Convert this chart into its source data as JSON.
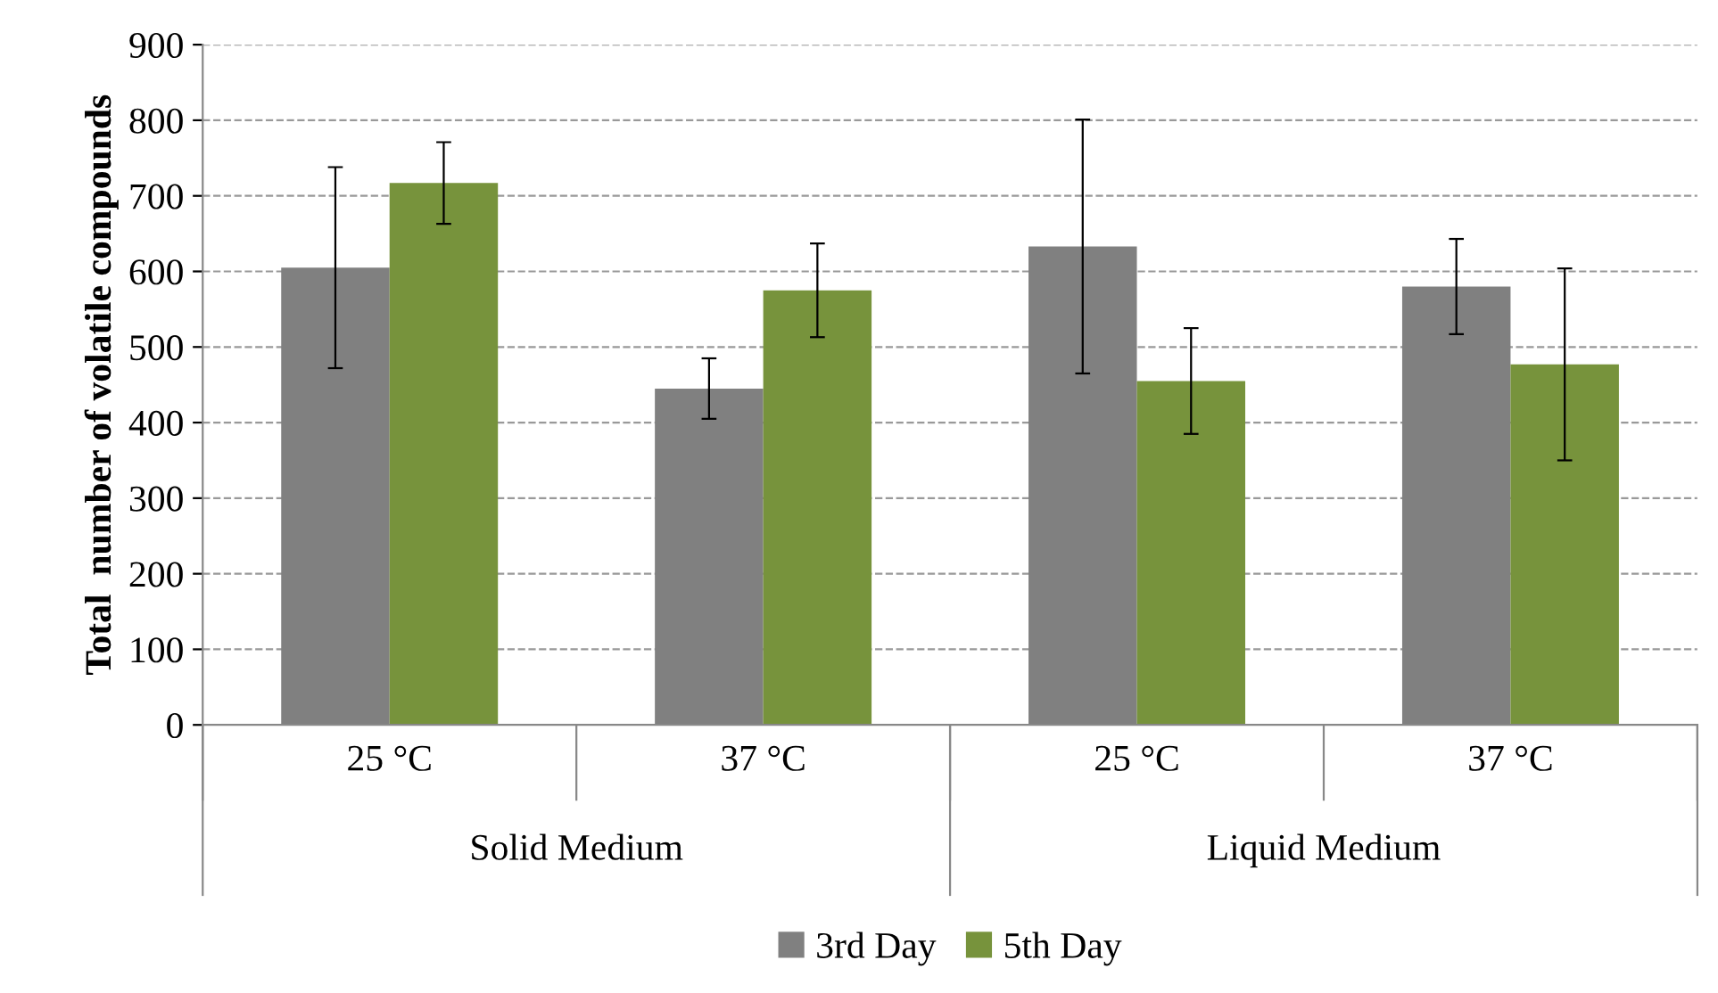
{
  "chart_data": {
    "type": "bar",
    "ylabel": "Total  number of volatile compounds",
    "categories": [
      "25 °C",
      "37 °C",
      "25 °C",
      "37 °C"
    ],
    "annotations": [
      "Solid Medium",
      "Liquid Medium"
    ],
    "series": [
      {
        "name": "3rd Day",
        "color": "#808080",
        "values": [
          605,
          445,
          633,
          580
        ],
        "errors": [
          133,
          40,
          168,
          63
        ]
      },
      {
        "name": "5th Day",
        "color": "#77933c",
        "values": [
          717,
          575,
          455,
          477
        ],
        "errors": [
          54,
          62,
          70,
          127
        ]
      }
    ],
    "ylim": [
      0,
      900
    ],
    "yticks": [
      0,
      100,
      200,
      300,
      400,
      500,
      600,
      700,
      800,
      900
    ],
    "grid": "y",
    "legend": "bottom"
  }
}
